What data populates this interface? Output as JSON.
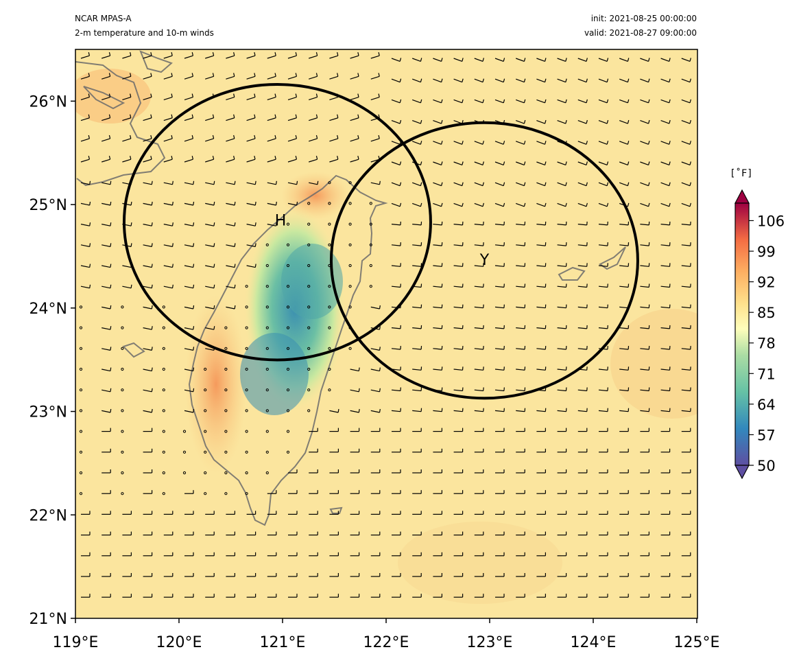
{
  "header": {
    "model": "NCAR MPAS-A",
    "field": "2-m temperature and 10-m winds",
    "init": "init: 2021-08-25 00:00:00",
    "valid": "valid: 2021-08-27 09:00:00"
  },
  "map": {
    "lon_range": [
      119,
      125
    ],
    "lat_range": [
      21,
      26.5
    ],
    "x_ticks": [
      "119°E",
      "120°E",
      "121°E",
      "122°E",
      "123°E",
      "124°E",
      "125°E"
    ],
    "y_ticks": [
      "21°N",
      "22°N",
      "23°N",
      "24°N",
      "25°N",
      "26°N"
    ],
    "markers": [
      {
        "label": "H",
        "lon": 120.98,
        "lat": 24.85
      },
      {
        "label": "Y",
        "lon": 122.95,
        "lat": 24.47
      }
    ],
    "circles": [
      {
        "center_lon": 120.95,
        "center_lat": 24.83,
        "radius_deg": 1.48
      },
      {
        "center_lon": 122.95,
        "center_lat": 24.46,
        "radius_deg": 1.48
      }
    ]
  },
  "colorbar": {
    "unit": "[˚F]",
    "ticks": [
      "106",
      "99",
      "92",
      "85",
      "78",
      "71",
      "64",
      "57",
      "50"
    ],
    "range": [
      50,
      110
    ]
  },
  "colors": {
    "ocean_fill": "#fbe4a0",
    "warm_land": "#f6a35f",
    "cool_land": "#4fa6a8"
  }
}
